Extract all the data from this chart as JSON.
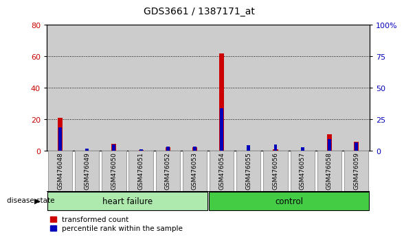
{
  "title": "GDS3661 / 1387171_at",
  "samples": [
    "GSM476048",
    "GSM476049",
    "GSM476050",
    "GSM476051",
    "GSM476052",
    "GSM476053",
    "GSM476054",
    "GSM476055",
    "GSM476056",
    "GSM476057",
    "GSM476058",
    "GSM476059"
  ],
  "transformed_count": [
    21,
    0.3,
    4.5,
    0.5,
    2.5,
    2.5,
    62,
    0.3,
    1.0,
    0.3,
    10.5,
    6.0
  ],
  "percentile_rank_scaled": [
    15,
    1.5,
    4.0,
    1.2,
    2.8,
    2.8,
    27,
    3.5,
    4.0,
    2.5,
    7.5,
    5.5
  ],
  "groups": [
    {
      "label": "heart failure",
      "start": 0,
      "end": 6,
      "light_color": "#AEEAAE",
      "dark_color": "#AEEAAE"
    },
    {
      "label": "control",
      "start": 6,
      "end": 12,
      "light_color": "#44CC44",
      "dark_color": "#44CC44"
    }
  ],
  "left_ylim": [
    0,
    80
  ],
  "right_ylim": [
    0,
    100
  ],
  "left_yticks": [
    0,
    20,
    40,
    60,
    80
  ],
  "right_yticks": [
    0,
    25,
    50,
    75,
    100
  ],
  "right_yticklabels": [
    "0",
    "25",
    "50",
    "75",
    "100%"
  ],
  "red_color": "#CC0000",
  "blue_color": "#0000BB",
  "bg_color": "#CCCCCC",
  "disease_state_label": "disease state",
  "legend_items": [
    "transformed count",
    "percentile rank within the sample"
  ]
}
